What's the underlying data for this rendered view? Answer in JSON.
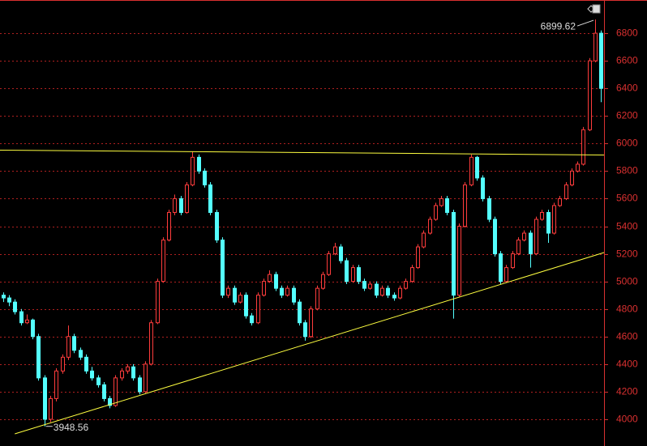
{
  "chart_data": {
    "type": "candlestick",
    "up_color": "#ff3c3c",
    "down_color": "#54ffff",
    "grid": true,
    "grid_color": "#b02020",
    "axis_color": "#d83030",
    "xlim": [
      -0.5,
      101.5
    ],
    "ylim": [
      3806,
      7041
    ],
    "yticks": [
      4000,
      4200,
      4400,
      4600,
      4800,
      5000,
      5200,
      5400,
      5600,
      5800,
      6000,
      6200,
      6400,
      6600,
      6800
    ],
    "open": [
      4900,
      4880,
      4850,
      4780,
      4700,
      4720,
      4600,
      4300,
      4000,
      4150,
      4350,
      4450,
      4600,
      4500,
      4450,
      4350,
      4300,
      4250,
      4150,
      4100,
      4300,
      4350,
      4380,
      4300,
      4200,
      4400,
      4700,
      5000,
      5300,
      5500,
      5600,
      5500,
      5700,
      5900,
      5800,
      5700,
      5500,
      5300,
      4900,
      4950,
      4850,
      4900,
      4750,
      4700,
      4900,
      5000,
      5050,
      4950,
      4900,
      4950,
      4850,
      4700,
      4600,
      4800,
      4950,
      5050,
      5200,
      5250,
      5150,
      5000,
      5100,
      5000,
      4950,
      4980,
      4900,
      4950,
      4900,
      4880,
      4950,
      5000,
      5100,
      5250,
      5350,
      5450,
      5550,
      5600,
      5500,
      4900,
      5400,
      5700,
      5900,
      5750,
      5600,
      5450,
      5200,
      5000,
      5100,
      5200,
      5300,
      5350,
      5200,
      5450,
      5500,
      5350,
      5550,
      5600,
      5700,
      5800,
      5850,
      6100,
      6600,
      6800
    ],
    "high": [
      4920,
      4900,
      4870,
      4800,
      4760,
      4730,
      4620,
      4320,
      4170,
      4370,
      4470,
      4680,
      4620,
      4520,
      4470,
      4380,
      4320,
      4270,
      4170,
      4320,
      4370,
      4400,
      4400,
      4320,
      4420,
      4720,
      5020,
      5320,
      5520,
      5630,
      5620,
      5720,
      5940,
      5920,
      5820,
      5720,
      5520,
      5320,
      4970,
      4970,
      4920,
      4920,
      4770,
      4920,
      5020,
      5080,
      5070,
      4970,
      4970,
      4970,
      4870,
      4720,
      4820,
      4970,
      5070,
      5220,
      5280,
      5270,
      5170,
      5120,
      5120,
      5020,
      5000,
      5000,
      4970,
      4970,
      4920,
      4970,
      5020,
      5120,
      5270,
      5370,
      5470,
      5570,
      5620,
      5620,
      5520,
      5420,
      5720,
      5920,
      5910,
      5770,
      5620,
      5470,
      5220,
      5120,
      5220,
      5320,
      5370,
      5370,
      5470,
      5520,
      5520,
      5570,
      5620,
      5720,
      5820,
      5870,
      6120,
      6620,
      6899.62,
      6820
    ],
    "low": [
      4850,
      4820,
      4760,
      4680,
      4690,
      4580,
      4280,
      3948.56,
      3980,
      4130,
      4330,
      4430,
      4480,
      4430,
      4330,
      4280,
      4230,
      4130,
      4080,
      4090,
      4280,
      4330,
      4280,
      4180,
      4190,
      4390,
      4690,
      4990,
      5290,
      5480,
      5480,
      5490,
      5690,
      5780,
      5680,
      5480,
      5280,
      4880,
      4880,
      4830,
      4840,
      4730,
      4680,
      4690,
      4890,
      4990,
      4930,
      4880,
      4890,
      4830,
      4680,
      4570,
      4590,
      4790,
      4940,
      5040,
      5190,
      5130,
      4980,
      4990,
      4980,
      4930,
      4940,
      4880,
      4890,
      4880,
      4860,
      4870,
      4940,
      4990,
      5090,
      5240,
      5340,
      5440,
      5540,
      5480,
      4730,
      4890,
      5390,
      5690,
      5730,
      5580,
      5430,
      5180,
      4980,
      4990,
      5090,
      5190,
      5290,
      5100,
      5190,
      5440,
      5280,
      5340,
      5540,
      5590,
      5690,
      5790,
      5840,
      6090,
      6590,
      6300
    ],
    "close": [
      4880,
      4850,
      4780,
      4700,
      4720,
      4600,
      4300,
      4000,
      4150,
      4350,
      4450,
      4600,
      4500,
      4450,
      4350,
      4300,
      4250,
      4150,
      4100,
      4300,
      4350,
      4380,
      4300,
      4200,
      4400,
      4700,
      5000,
      5300,
      5500,
      5600,
      5500,
      5700,
      5900,
      5800,
      5700,
      5500,
      5300,
      4900,
      4950,
      4850,
      4900,
      4750,
      4700,
      4900,
      5000,
      5050,
      4950,
      4900,
      4950,
      4850,
      4700,
      4600,
      4800,
      4950,
      5050,
      5200,
      5250,
      5150,
      5000,
      5100,
      5000,
      4950,
      4980,
      4900,
      4950,
      4900,
      4880,
      4950,
      5000,
      5100,
      5250,
      5350,
      5450,
      5550,
      5600,
      5500,
      4900,
      5400,
      5700,
      5900,
      5750,
      5600,
      5450,
      5200,
      5000,
      5100,
      5200,
      5300,
      5350,
      5200,
      5450,
      5500,
      5350,
      5550,
      5600,
      5700,
      5800,
      5850,
      6100,
      6600,
      6800,
      6400
    ],
    "trendlines": [
      {
        "x": [
          -0.5,
          101.5
        ],
        "y": [
          5952,
          5917
        ],
        "color": "#ffff40"
      },
      {
        "x": [
          2,
          101.5
        ],
        "y": [
          3894,
          5209
        ],
        "color": "#ffff40"
      }
    ],
    "annotations": [
      {
        "x": 100,
        "value": 6899.62,
        "label": "6899.62",
        "side": "left"
      },
      {
        "x": 7,
        "value": 3948.56,
        "label": "3948.56",
        "side": "right"
      }
    ]
  }
}
